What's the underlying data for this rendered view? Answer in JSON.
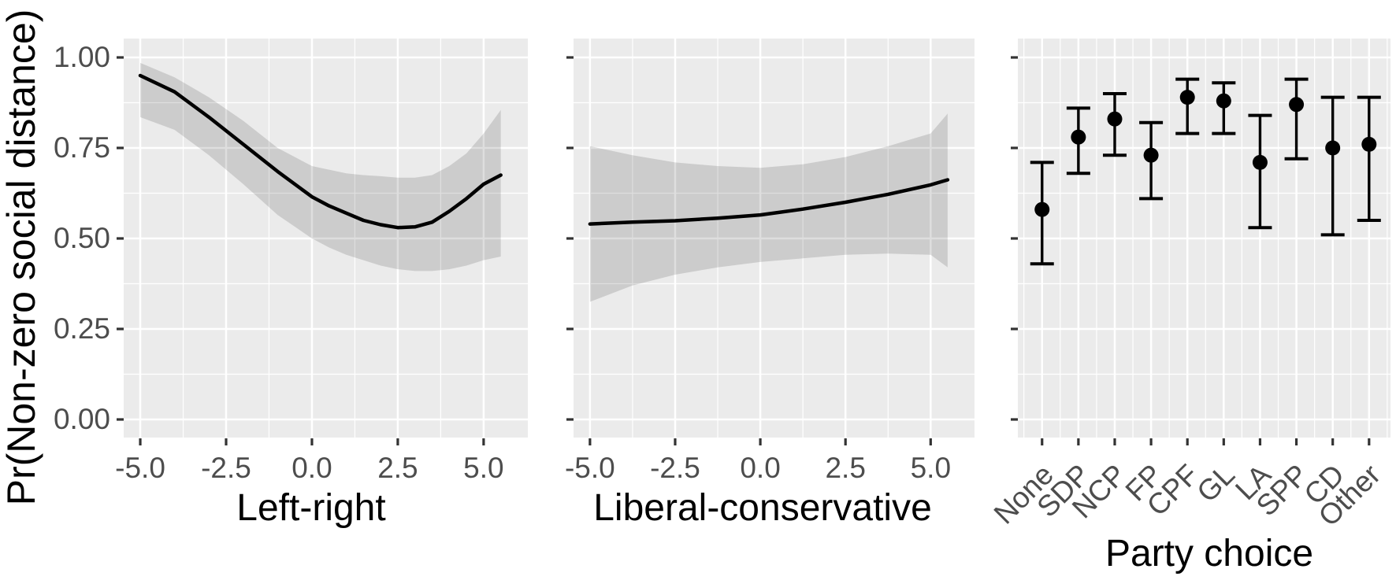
{
  "y_axis": {
    "label": "Pr(Non-zero social distance)",
    "tick_labels": [
      "1.00",
      "0.75",
      "0.50",
      "0.25",
      "0.00"
    ],
    "tick_values": [
      1.0,
      0.75,
      0.5,
      0.25,
      0.0
    ]
  },
  "colors": {
    "background": "#FFFFFF",
    "panel_background": "#EBEBEB",
    "gridline": "#FFFFFF",
    "band": "rgba(0,0,0,0.13)",
    "line": "#000000",
    "point": "#000000",
    "tick_mark": "#333333",
    "tick_text": "#4D4D4D",
    "axis_title_text": "#000000"
  },
  "chart_data": [
    {
      "type": "line",
      "panel": "left",
      "xlabel": "Left-right",
      "ylabel": "Pr(Non-zero social distance)",
      "x_tick_labels": [
        "-5.0",
        "-2.5",
        "0.0",
        "2.5",
        "5.0"
      ],
      "x_tick_values": [
        -5,
        -2.5,
        0,
        2.5,
        5
      ],
      "ylim": [
        0,
        1
      ],
      "grid": true,
      "x": [
        -5,
        -4,
        -3,
        -2,
        -1,
        0,
        0.5,
        1,
        1.5,
        2,
        2.5,
        3,
        3.5,
        4,
        4.5,
        5,
        5.5
      ],
      "y": [
        0.95,
        0.905,
        0.835,
        0.76,
        0.685,
        0.615,
        0.59,
        0.57,
        0.55,
        0.538,
        0.53,
        0.532,
        0.545,
        0.575,
        0.61,
        0.65,
        0.675
      ],
      "band_upper": [
        0.985,
        0.945,
        0.89,
        0.825,
        0.75,
        0.7,
        0.69,
        0.68,
        0.675,
        0.672,
        0.668,
        0.668,
        0.675,
        0.7,
        0.735,
        0.79,
        0.855
      ],
      "band_lower": [
        0.835,
        0.8,
        0.73,
        0.65,
        0.565,
        0.5,
        0.475,
        0.455,
        0.44,
        0.425,
        0.415,
        0.41,
        0.41,
        0.415,
        0.425,
        0.44,
        0.45
      ]
    },
    {
      "type": "line",
      "panel": "middle",
      "xlabel": "Liberal-conservative",
      "ylabel": "Pr(Non-zero social distance)",
      "x_tick_labels": [
        "-5.0",
        "-2.5",
        "0.0",
        "2.5",
        "5.0"
      ],
      "x_tick_values": [
        -5,
        -2.5,
        0,
        2.5,
        5
      ],
      "ylim": [
        0,
        1
      ],
      "grid": true,
      "x": [
        -5,
        -3.75,
        -2.5,
        -1.25,
        0,
        1.25,
        2.5,
        3.75,
        5,
        5.5
      ],
      "y": [
        0.54,
        0.545,
        0.549,
        0.556,
        0.565,
        0.581,
        0.6,
        0.622,
        0.648,
        0.662
      ],
      "band_upper": [
        0.755,
        0.73,
        0.71,
        0.7,
        0.695,
        0.705,
        0.725,
        0.755,
        0.79,
        0.845
      ],
      "band_lower": [
        0.325,
        0.37,
        0.4,
        0.42,
        0.435,
        0.445,
        0.455,
        0.458,
        0.455,
        0.42
      ]
    },
    {
      "type": "pointrange",
      "panel": "right",
      "xlabel": "Party choice",
      "ylabel": "Pr(Non-zero social distance)",
      "ylim": [
        0,
        1
      ],
      "grid": true,
      "categories": [
        "None",
        "SDP",
        "NCP",
        "FP",
        "CPF",
        "GL",
        "LA",
        "SPP",
        "CD",
        "Other"
      ],
      "values": [
        0.58,
        0.78,
        0.83,
        0.73,
        0.89,
        0.88,
        0.71,
        0.87,
        0.75,
        0.76
      ],
      "lower": [
        0.43,
        0.68,
        0.73,
        0.61,
        0.79,
        0.79,
        0.53,
        0.72,
        0.51,
        0.55
      ],
      "upper": [
        0.71,
        0.86,
        0.9,
        0.82,
        0.94,
        0.93,
        0.84,
        0.94,
        0.89,
        0.89
      ]
    }
  ]
}
